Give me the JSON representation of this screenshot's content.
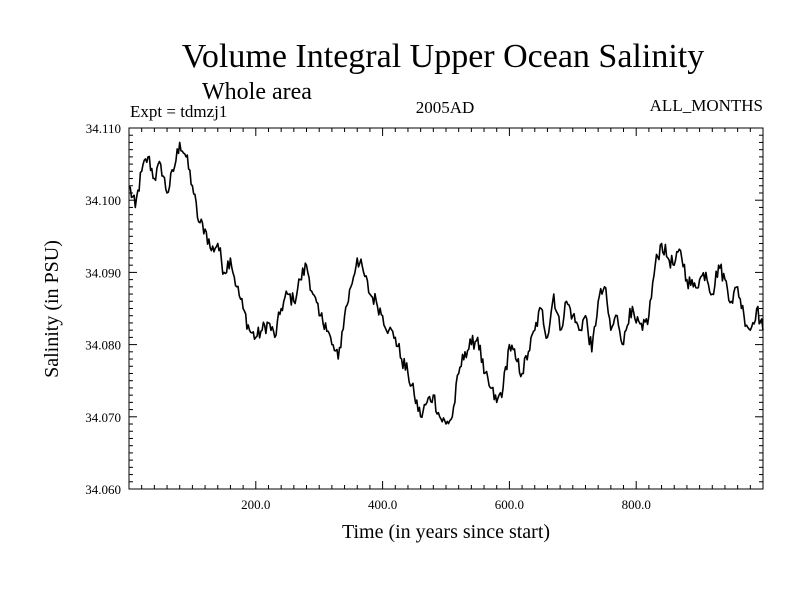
{
  "chart_data": {
    "type": "line",
    "title": "Volume Integral Upper Ocean Salinity",
    "subtitle": "Whole area",
    "header_left": "Expt = tdmzj1",
    "header_center": "2005AD",
    "header_right": "ALL_MONTHS",
    "xlabel": "Time (in years since start)",
    "ylabel": "Salinity (in PSU)",
    "xlim": [
      0,
      1000
    ],
    "ylim": [
      34.06,
      34.11
    ],
    "x_ticks": [
      200,
      400,
      600,
      800
    ],
    "x_tick_labels": [
      "200.0",
      "400.0",
      "600.0",
      "800.0"
    ],
    "y_ticks": [
      34.06,
      34.07,
      34.08,
      34.09,
      34.1,
      34.11
    ],
    "y_tick_labels": [
      "34.060",
      "34.070",
      "34.080",
      "34.090",
      "34.100",
      "34.110"
    ],
    "grid": false,
    "series": [
      {
        "name": "Salinity",
        "color": "#000000",
        "x": [
          0,
          10,
          20,
          30,
          40,
          50,
          60,
          70,
          80,
          90,
          100,
          110,
          120,
          130,
          140,
          150,
          160,
          170,
          180,
          190,
          200,
          210,
          220,
          230,
          240,
          250,
          260,
          270,
          280,
          290,
          300,
          310,
          320,
          330,
          340,
          350,
          360,
          370,
          380,
          390,
          400,
          410,
          420,
          430,
          440,
          450,
          460,
          470,
          480,
          490,
          500,
          510,
          520,
          530,
          540,
          550,
          560,
          570,
          580,
          590,
          600,
          610,
          620,
          630,
          640,
          650,
          660,
          670,
          680,
          690,
          700,
          710,
          720,
          730,
          740,
          750,
          760,
          770,
          780,
          790,
          800,
          810,
          820,
          830,
          840,
          850,
          860,
          870,
          880,
          890,
          900,
          910,
          920,
          930,
          940,
          950,
          960,
          970,
          980,
          990,
          1000
        ],
        "values": [
          34.102,
          34.099,
          34.104,
          34.106,
          34.103,
          34.105,
          34.101,
          34.104,
          34.108,
          34.106,
          34.102,
          34.097,
          34.096,
          34.093,
          34.094,
          34.09,
          34.092,
          34.088,
          34.085,
          34.082,
          34.081,
          34.082,
          34.083,
          34.081,
          34.085,
          34.087,
          34.086,
          34.089,
          34.091,
          34.087,
          34.084,
          34.083,
          34.08,
          34.078,
          34.084,
          34.088,
          34.092,
          34.09,
          34.087,
          34.086,
          34.084,
          34.082,
          34.081,
          34.078,
          34.076,
          34.073,
          34.07,
          34.072,
          34.073,
          34.07,
          34.069,
          34.07,
          34.076,
          34.079,
          34.08,
          34.081,
          34.076,
          34.074,
          34.072,
          34.074,
          34.08,
          34.078,
          34.076,
          34.079,
          34.082,
          34.085,
          34.081,
          34.087,
          34.082,
          34.086,
          34.084,
          34.082,
          34.084,
          34.079,
          34.086,
          34.088,
          34.082,
          34.084,
          34.08,
          34.085,
          34.083,
          34.082,
          34.084,
          34.091,
          34.094,
          34.092,
          34.091,
          34.093,
          34.089,
          34.088,
          34.089,
          34.09,
          34.087,
          34.091,
          34.089,
          34.086,
          34.088,
          34.084,
          34.082,
          34.085,
          34.082
        ]
      }
    ]
  }
}
